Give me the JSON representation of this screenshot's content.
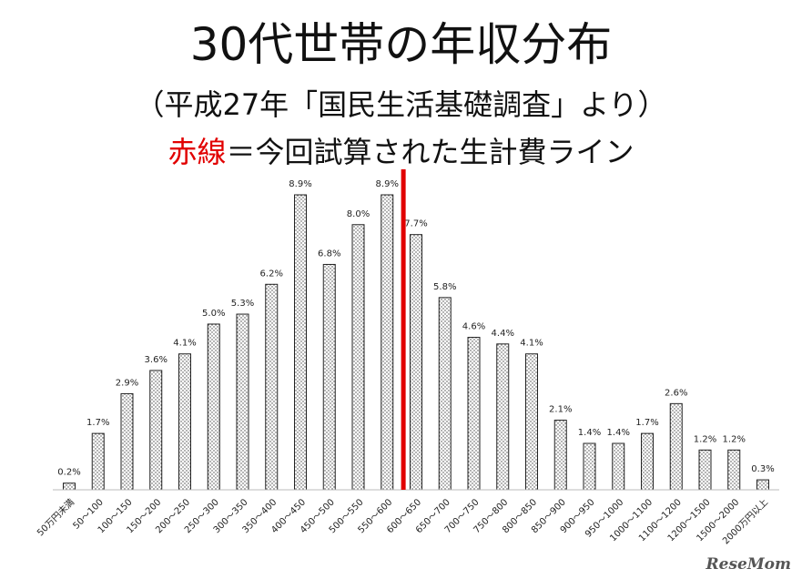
{
  "header": {
    "title": "30代世帯の年収分布",
    "subtitle": "（平成27年「国民生活基礎調査」より）",
    "redline_label": "赤線",
    "redline_text": "＝今回試算された生計費ライン"
  },
  "logo": {
    "text": "ReseMom"
  },
  "chart_data": {
    "type": "bar",
    "categories": [
      "50万円未満",
      "50～100",
      "100～150",
      "150～200",
      "200～250",
      "250～300",
      "300～350",
      "350～400",
      "400～450",
      "450～500",
      "500～550",
      "550～600",
      "600～650",
      "650～700",
      "700～750",
      "750～800",
      "800～850",
      "850～900",
      "900～950",
      "950～1000",
      "1000～1100",
      "1100～1200",
      "1200～1500",
      "1500～2000",
      "2000万円以上"
    ],
    "values": [
      0.2,
      1.7,
      2.9,
      3.6,
      4.1,
      5.0,
      5.3,
      6.2,
      8.9,
      6.8,
      8.0,
      8.9,
      7.7,
      5.8,
      4.6,
      4.4,
      4.1,
      2.1,
      1.4,
      1.4,
      1.7,
      2.6,
      1.2,
      1.2,
      0.3
    ],
    "data_labels": [
      "0.2%",
      "1.7%",
      "2.9%",
      "3.6%",
      "4.1%",
      "5.0%",
      "5.3%",
      "6.2%",
      "8.9%",
      "6.8%",
      "8.0%",
      "8.9%",
      "7.7%",
      "5.8%",
      "4.6%",
      "4.4%",
      "4.1%",
      "2.1%",
      "1.4%",
      "1.4%",
      "1.7%",
      "2.6%",
      "1.2%",
      "1.2%",
      "0.3%"
    ],
    "ylim": [
      0,
      10
    ],
    "grid": false,
    "reference_line": {
      "between": [
        "550～600",
        "600～650"
      ],
      "color": "#e10000"
    },
    "bar_fill": "dotted"
  }
}
